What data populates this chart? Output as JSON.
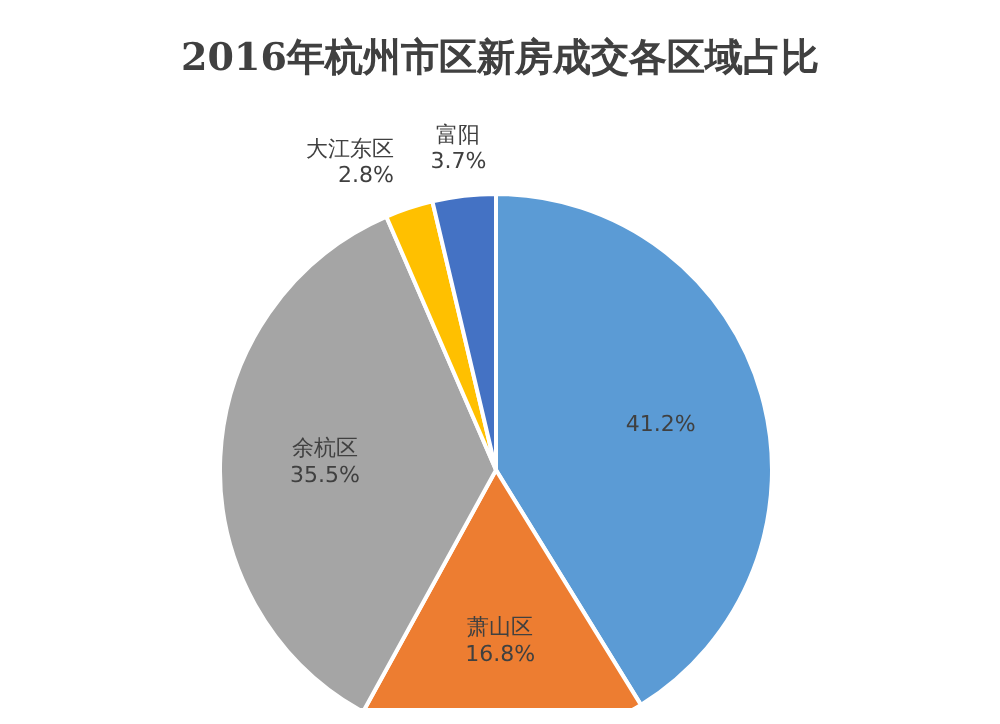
{
  "chart_data": {
    "type": "pie",
    "title": "2016年杭州市区新房成交各区域占比",
    "categories": [
      null,
      "萧山区",
      "余杭区",
      "大江东区",
      "富阳"
    ],
    "values": [
      41.2,
      16.8,
      35.5,
      2.8,
      3.7
    ],
    "colors": [
      "#5b9bd5",
      "#ed7d31",
      "#a5a5a5",
      "#ffc000",
      "#4472c4"
    ],
    "value_labels": [
      "41.2%",
      "16.8%",
      "35.5%",
      "2.8%",
      "3.7%"
    ],
    "legend": false
  }
}
